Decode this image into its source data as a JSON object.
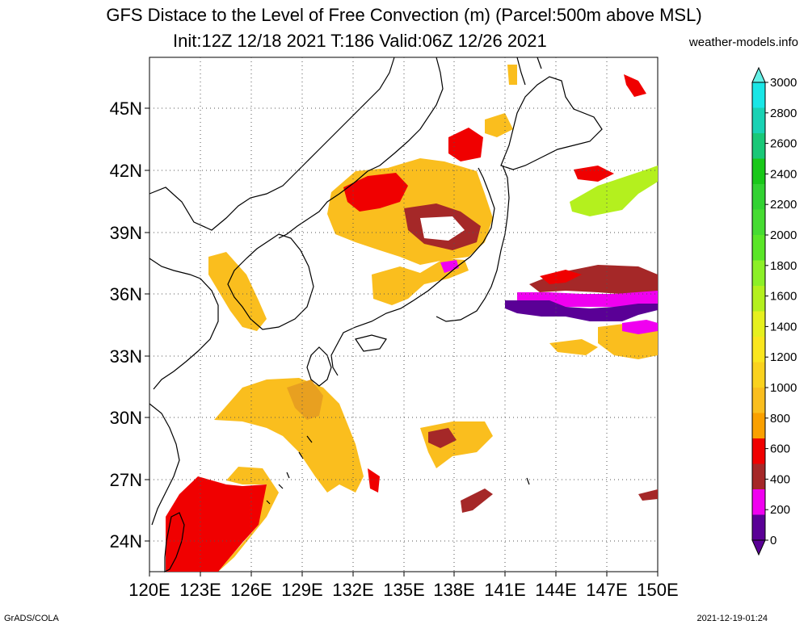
{
  "title": {
    "line1": "GFS Distace to the Level of Free Convection (m) (Parcel:500m above MSL)",
    "line2": "Init:12Z 12/18 2021 T:186 Valid:06Z 12/26 2021",
    "site": "weather-models.info"
  },
  "footer": {
    "left": "GrADS/COLA",
    "right": "2021-12-19-01:24"
  },
  "axes": {
    "lat_labels": [
      "24N",
      "27N",
      "30N",
      "33N",
      "36N",
      "39N",
      "42N",
      "45N"
    ],
    "lon_labels": [
      "120E",
      "123E",
      "126E",
      "129E",
      "132E",
      "135E",
      "138E",
      "141E",
      "144E",
      "147E",
      "150E"
    ],
    "lon_range": [
      120,
      150
    ],
    "lat_range": [
      22.5,
      47.5
    ],
    "grid": "dotted"
  },
  "colorbar": {
    "labels": [
      "3000",
      "2800",
      "2600",
      "2400",
      "2200",
      "2000",
      "1800",
      "1600",
      "1400",
      "1200",
      "1000",
      "800",
      "600",
      "400",
      "200",
      "0"
    ],
    "colors": [
      "#19e6e6",
      "#19d2b4",
      "#19c878",
      "#19c819",
      "#32d232",
      "#46dc32",
      "#5ae628",
      "#8cf028",
      "#b4f01e",
      "#e6f01e",
      "#fae61e",
      "#fad21e",
      "#fabe1e",
      "#faa000",
      "#f00000",
      "#a52828",
      "#f000f0",
      "#5a0096"
    ],
    "top_arrow_color": "#64f0e6",
    "bottom_arrow_color": "#5a0096"
  }
}
